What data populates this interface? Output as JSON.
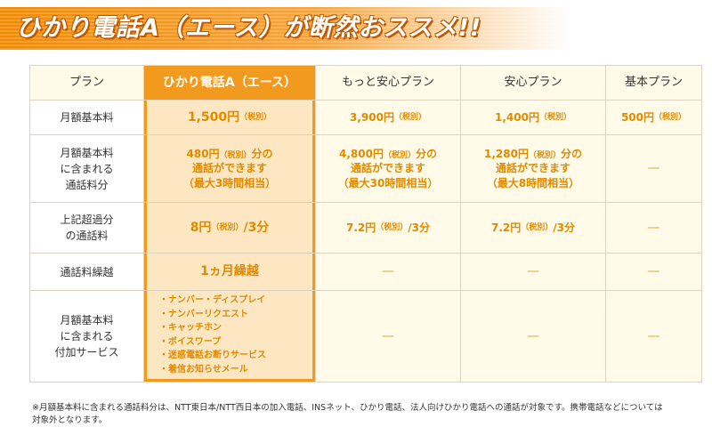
{
  "banner": {
    "title": "ひかり電話A（エース）が断然おススメ!!"
  },
  "table": {
    "headers": {
      "plan": "プラン",
      "col_ace": "ひかり電話A（エース）",
      "col_motto": "もっと安心プラン",
      "col_anshin": "安心プラン",
      "col_kihon": "基本プラン"
    },
    "rows": {
      "monthly": {
        "label": "月額基本料",
        "ace_amount": "1,500円",
        "ace_tax": "（税別）",
        "motto_amount": "3,900円",
        "motto_tax": "（税別）",
        "anshin_amount": "1,400円",
        "anshin_tax": "（税別）",
        "kihon_amount": "500円",
        "kihon_tax": "（税別）"
      },
      "included_calls": {
        "label_1": "月額基本料",
        "label_2": "に含まれる",
        "label_3": "通話料分",
        "ace_amount": "480円",
        "ace_tax": "（税別）",
        "ace_suffix": "分の",
        "ace_line2": "通話ができます",
        "ace_line3": "（最大3時間相当）",
        "motto_amount": "4,800円",
        "motto_tax": "（税別）",
        "motto_suffix": "分の",
        "motto_line2": "通話ができます",
        "motto_line3": "（最大30時間相当）",
        "anshin_amount": "1,280円",
        "anshin_tax": "（税別）",
        "anshin_suffix": "分の",
        "anshin_line2": "通話ができます",
        "anshin_line3": "（最大8時間相当）",
        "kihon": "—"
      },
      "overage": {
        "label_1": "上記超過分",
        "label_2": "の通話料",
        "ace_amount": "8円",
        "ace_tax": "（税別）",
        "ace_unit": "/3分",
        "motto_amount": "7.2円",
        "motto_tax": "（税別）",
        "motto_unit": "/3分",
        "anshin_amount": "7.2円",
        "anshin_tax": "（税別）",
        "anshin_unit": "/3分",
        "kihon": "—"
      },
      "carryover": {
        "label": "通話料繰越",
        "ace": "1ヵ月繰越",
        "motto": "—",
        "anshin": "—",
        "kihon": "—"
      },
      "services": {
        "label_1": "月額基本料",
        "label_2": "に含まれる",
        "label_3": "付加サービス",
        "ace_items": [
          "・ナンバー・ディスプレイ",
          "・ナンバーリクエスト",
          "・キャッチホン",
          "・ボイスワープ",
          "・迷惑電話お断りサービス",
          "・着信お知らせメール"
        ],
        "motto": "—",
        "anshin": "—",
        "kihon": "—"
      }
    }
  },
  "footnote": {
    "line1": "※月額基本料に含まれる通話料分は、NTT東日本/NTT西日本の加入電話、INSネット、ひかり電話、法人向けひかり電話への通話が対象です。携帯電話などについては",
    "line2": "対象外となります。"
  },
  "colors": {
    "accent": "#f29a1e",
    "accent_text": "#e08a00",
    "highlight_bg": "#fde7c2",
    "cell_bg": "#fffbe8"
  }
}
